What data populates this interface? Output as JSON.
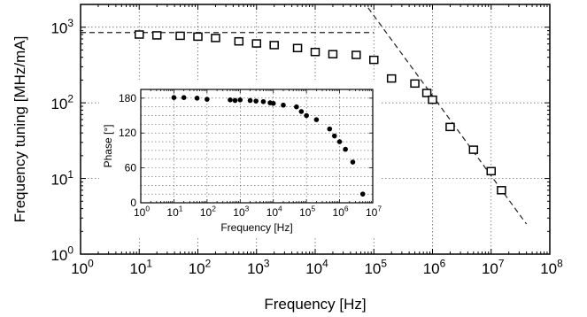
{
  "chart_data": [
    {
      "type": "scatter",
      "xlabel": "Frequency [Hz]",
      "ylabel": "Frequency tuning [MHz/mA]",
      "x_scale": "log",
      "y_scale": "log",
      "xlim": [
        1,
        100000000
      ],
      "ylim": [
        1,
        2000
      ],
      "grid": true,
      "x_ticks": [
        {
          "base": "10",
          "exp": "0",
          "value": 1
        },
        {
          "base": "10",
          "exp": "1",
          "value": 10
        },
        {
          "base": "10",
          "exp": "2",
          "value": 100
        },
        {
          "base": "10",
          "exp": "3",
          "value": 1000
        },
        {
          "base": "10",
          "exp": "4",
          "value": 10000
        },
        {
          "base": "10",
          "exp": "5",
          "value": 100000
        },
        {
          "base": "10",
          "exp": "6",
          "value": 1000000
        },
        {
          "base": "10",
          "exp": "7",
          "value": 10000000
        },
        {
          "base": "10",
          "exp": "8",
          "value": 100000000
        }
      ],
      "y_ticks": [
        {
          "base": "10",
          "exp": "0",
          "value": 1
        },
        {
          "base": "10",
          "exp": "1",
          "value": 10
        },
        {
          "base": "10",
          "exp": "2",
          "value": 100
        },
        {
          "base": "10",
          "exp": "3",
          "value": 1000
        }
      ],
      "series": [
        {
          "marker": "square-open",
          "x": [
            10,
            20,
            50,
            100,
            200,
            500,
            1000,
            2000,
            5000,
            10000,
            20000,
            50000,
            100000,
            200000,
            500000,
            800000,
            1000000,
            2000000,
            5000000,
            10000000,
            15000000
          ],
          "y": [
            800,
            780,
            770,
            750,
            720,
            650,
            610,
            580,
            530,
            470,
            440,
            430,
            370,
            210,
            180,
            135,
            110,
            48,
            24,
            12.5,
            7
          ]
        }
      ],
      "reference_lines": [
        {
          "style": "dashed",
          "x": [
            1,
            100000
          ],
          "y": [
            850,
            850
          ]
        },
        {
          "style": "dashed",
          "x": [
            80000,
            40000000
          ],
          "y": [
            1800,
            2.5
          ]
        }
      ]
    },
    {
      "type": "scatter",
      "xlabel": "Frequency [Hz]",
      "ylabel": "Phase [°]",
      "x_scale": "log",
      "xlim": [
        1,
        10000000
      ],
      "ylim": [
        0,
        195
      ],
      "grid": true,
      "x_ticks": [
        {
          "base": "10",
          "exp": "0",
          "value": 1
        },
        {
          "base": "10",
          "exp": "1",
          "value": 10
        },
        {
          "base": "10",
          "exp": "2",
          "value": 100
        },
        {
          "base": "10",
          "exp": "3",
          "value": 1000
        },
        {
          "base": "10",
          "exp": "4",
          "value": 10000
        },
        {
          "base": "10",
          "exp": "5",
          "value": 100000
        },
        {
          "base": "10",
          "exp": "6",
          "value": 1000000
        },
        {
          "base": "10",
          "exp": "7",
          "value": 10000000
        }
      ],
      "y_ticks": [
        {
          "label": "0",
          "value": 0
        },
        {
          "label": "60",
          "value": 60
        },
        {
          "label": "120",
          "value": 120
        },
        {
          "label": "180",
          "value": 180
        }
      ],
      "series": [
        {
          "marker": "dot-filled",
          "x": [
            10,
            20,
            50,
            100,
            500,
            700,
            1000,
            2000,
            3000,
            5000,
            8000,
            10000,
            20000,
            50000,
            70000,
            100000,
            200000,
            500000,
            700000,
            1000000,
            1500000,
            2500000,
            5000000
          ],
          "y": [
            181,
            181,
            180,
            178,
            177,
            176,
            177,
            176,
            175,
            174,
            172,
            171,
            168,
            165,
            157,
            150,
            143,
            127,
            115,
            105,
            92,
            70,
            15
          ]
        }
      ]
    }
  ]
}
